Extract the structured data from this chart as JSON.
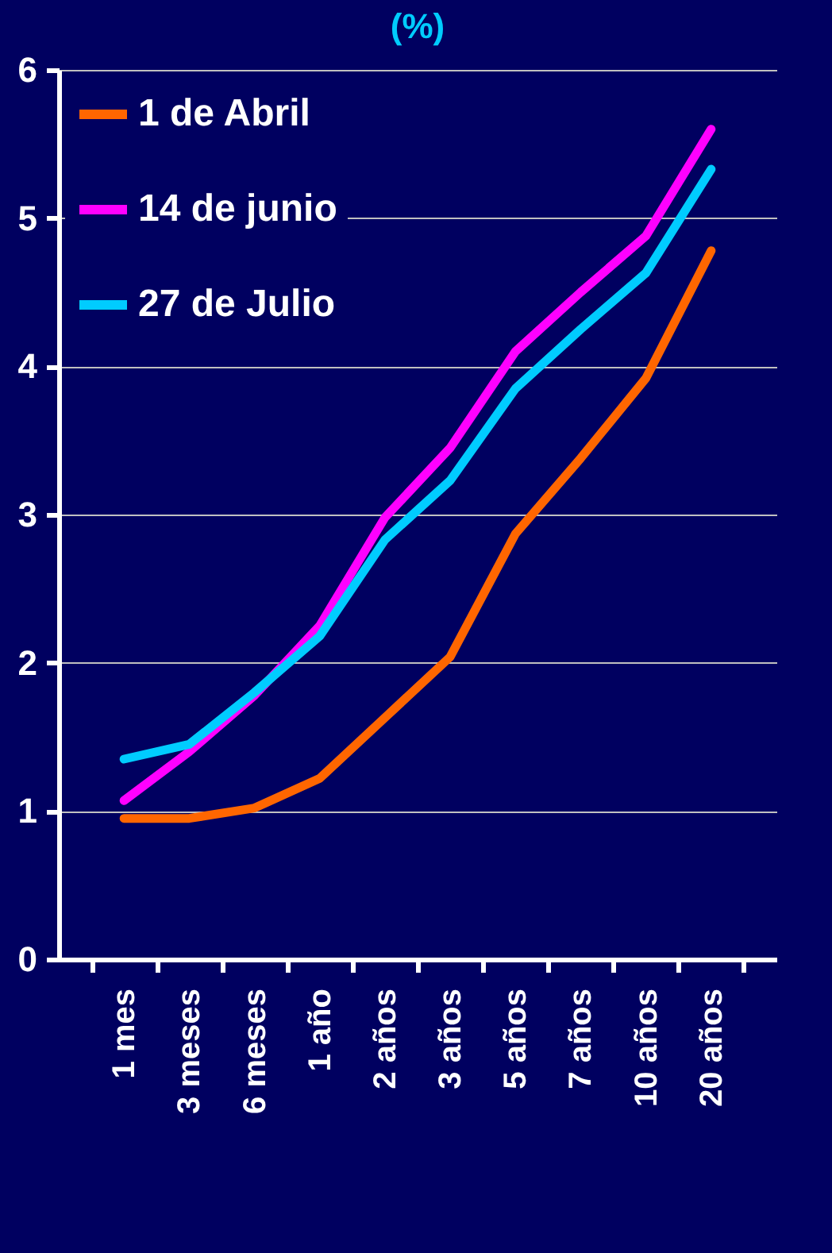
{
  "chart_data": {
    "type": "line",
    "title": "(%)",
    "categories": [
      "1 mes",
      "3 meses",
      "6 meses",
      "1 año",
      "2 años",
      "3 años",
      "5 años",
      "7 años",
      "10 años",
      "20 años"
    ],
    "series": [
      {
        "name": "1 de Abril",
        "color": "#ff6600",
        "values": [
          0.95,
          0.95,
          1.02,
          1.22,
          1.63,
          2.04,
          2.87,
          3.38,
          3.92,
          4.78
        ]
      },
      {
        "name": "14 de junio",
        "color": "#ff00ff",
        "values": [
          1.07,
          1.4,
          1.78,
          2.25,
          2.98,
          3.45,
          4.1,
          4.5,
          4.88,
          5.6
        ]
      },
      {
        "name": "27 de Julio",
        "color": "#00ccff",
        "values": [
          1.35,
          1.45,
          1.8,
          2.18,
          2.83,
          3.23,
          3.85,
          4.25,
          4.63,
          5.33
        ]
      }
    ],
    "ylim": [
      0,
      6
    ],
    "yticks": [
      0,
      1,
      2,
      3,
      4,
      5,
      6
    ],
    "grid": "y",
    "legend": "top left",
    "marker": "none",
    "line_style": "solid"
  }
}
